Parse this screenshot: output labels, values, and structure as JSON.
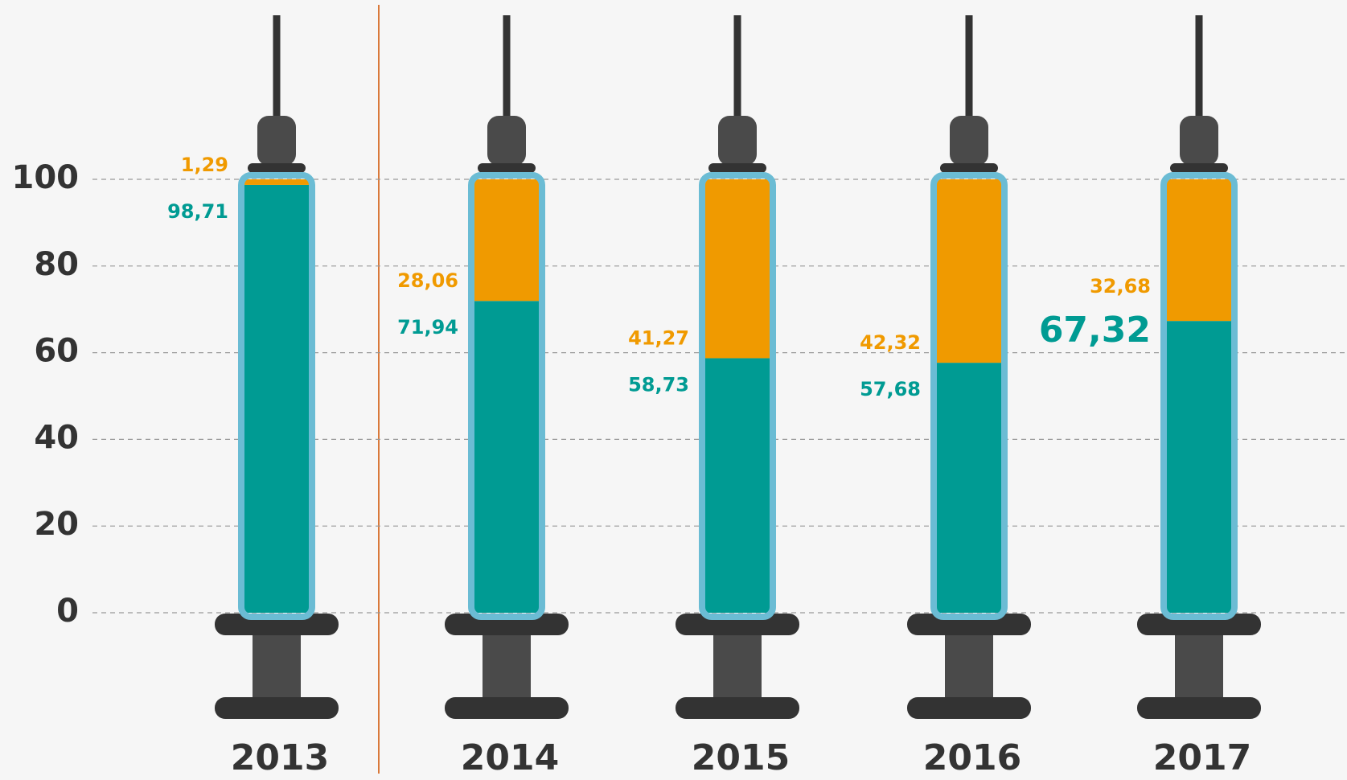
{
  "chart_data": {
    "type": "stacked_bar",
    "categories": [
      "2013",
      "2014",
      "2015",
      "2016",
      "2017"
    ],
    "series": [
      {
        "color": "#009b93",
        "values": [
          98.71,
          71.94,
          58.73,
          57.68,
          67.32
        ],
        "value_labels": [
          "98,71",
          "71,94",
          "58,73",
          "57,68",
          "67,32"
        ]
      },
      {
        "color": "#f09a00",
        "values": [
          1.29,
          28.06,
          41.27,
          42.32,
          32.68
        ],
        "value_labels": [
          "1,29",
          "28,06",
          "41,27",
          "42,32",
          "32,68"
        ]
      }
    ],
    "ylim": [
      0,
      100
    ],
    "yticks": [
      0,
      20,
      40,
      60,
      80,
      100
    ],
    "grid": true
  }
}
